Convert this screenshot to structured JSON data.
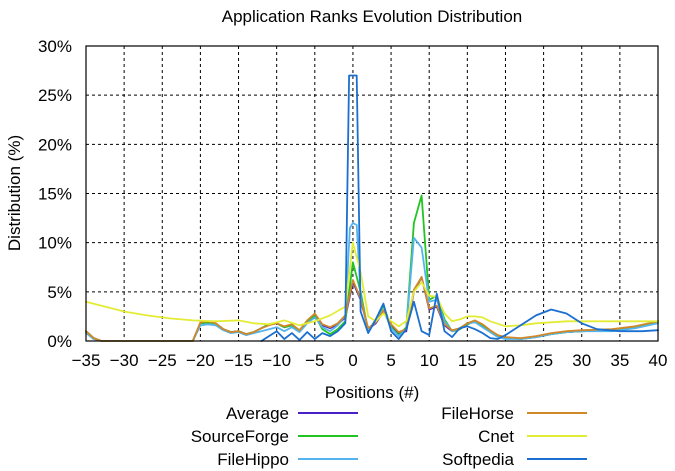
{
  "chart_data": {
    "type": "line",
    "title": "Application Ranks Evolution Distribution",
    "xlabel": "Positions (#)",
    "ylabel": "Distribution (%)",
    "xlim": [
      -35,
      40
    ],
    "ylim": [
      0,
      30
    ],
    "xticks": [
      -35,
      -30,
      -25,
      -20,
      -15,
      -10,
      -5,
      0,
      5,
      10,
      15,
      20,
      25,
      30,
      35,
      40
    ],
    "yticks": [
      0,
      5,
      10,
      15,
      20,
      25,
      30
    ],
    "ytick_labels": [
      "0%",
      "5%",
      "10%",
      "15%",
      "20%",
      "25%",
      "30%"
    ],
    "grid": true,
    "legend_position": "bottom",
    "series": [
      {
        "name": "Average",
        "color": "#4b1fc8",
        "points": [
          [
            -35,
            1.0
          ],
          [
            -34,
            0.3
          ],
          [
            -33,
            0
          ],
          [
            -21,
            0
          ],
          [
            -20,
            1.8
          ],
          [
            -19,
            1.9
          ],
          [
            -18,
            1.8
          ],
          [
            -17,
            1.2
          ],
          [
            -16,
            0.9
          ],
          [
            -15,
            1.0
          ],
          [
            -14,
            0.7
          ],
          [
            -13,
            0.9
          ],
          [
            -12,
            1.3
          ],
          [
            -11,
            1.7
          ],
          [
            -10,
            1.8
          ],
          [
            -9,
            1.4
          ],
          [
            -8,
            1.6
          ],
          [
            -7,
            1.0
          ],
          [
            -6,
            2.0
          ],
          [
            -5,
            2.6
          ],
          [
            -4,
            1.6
          ],
          [
            -3,
            1.3
          ],
          [
            -2,
            1.7
          ],
          [
            -1,
            2.4
          ],
          [
            0,
            6.0
          ],
          [
            1,
            4.2
          ],
          [
            2,
            1.2
          ],
          [
            3,
            1.8
          ],
          [
            4,
            3.0
          ],
          [
            5,
            1.6
          ],
          [
            6,
            0.8
          ],
          [
            7,
            1.0
          ],
          [
            8,
            5.0
          ],
          [
            9,
            6.5
          ],
          [
            10,
            3.2
          ],
          [
            11,
            3.5
          ],
          [
            12,
            1.6
          ],
          [
            13,
            1.0
          ],
          [
            14,
            1.2
          ],
          [
            15,
            1.7
          ],
          [
            16,
            2.0
          ],
          [
            17,
            1.6
          ],
          [
            18,
            1.0
          ],
          [
            19,
            0.5
          ],
          [
            20,
            0.3
          ],
          [
            22,
            0.2
          ],
          [
            24,
            0.4
          ],
          [
            26,
            0.7
          ],
          [
            28,
            0.9
          ],
          [
            30,
            1.0
          ],
          [
            34,
            1.1
          ],
          [
            37,
            1.4
          ],
          [
            40,
            2.0
          ]
        ]
      },
      {
        "name": "SourceForge",
        "color": "#22c422",
        "points": [
          [
            -35,
            1.0
          ],
          [
            -34,
            0.3
          ],
          [
            -33,
            0
          ],
          [
            -21,
            0
          ],
          [
            -20,
            1.8
          ],
          [
            -19,
            1.9
          ],
          [
            -18,
            1.8
          ],
          [
            -17,
            1.2
          ],
          [
            -16,
            0.9
          ],
          [
            -15,
            1.0
          ],
          [
            -14,
            0.7
          ],
          [
            -13,
            0.9
          ],
          [
            -12,
            1.3
          ],
          [
            -11,
            1.7
          ],
          [
            -10,
            1.8
          ],
          [
            -9,
            1.4
          ],
          [
            -8,
            1.6
          ],
          [
            -7,
            1.0
          ],
          [
            -6,
            2.0
          ],
          [
            -5,
            2.6
          ],
          [
            -4,
            1.2
          ],
          [
            -3,
            0.7
          ],
          [
            -2,
            1.2
          ],
          [
            -1,
            2.0
          ],
          [
            0,
            8.0
          ],
          [
            1,
            5.0
          ],
          [
            2,
            1.0
          ],
          [
            3,
            2.2
          ],
          [
            4,
            3.6
          ],
          [
            5,
            1.4
          ],
          [
            6,
            0.6
          ],
          [
            7,
            1.4
          ],
          [
            8,
            12.0
          ],
          [
            9,
            14.8
          ],
          [
            10,
            4.2
          ],
          [
            11,
            4.6
          ],
          [
            12,
            2.2
          ],
          [
            13,
            1.0
          ],
          [
            14,
            1.2
          ],
          [
            15,
            1.7
          ],
          [
            16,
            2.0
          ],
          [
            17,
            1.6
          ],
          [
            18,
            1.0
          ],
          [
            19,
            0.5
          ],
          [
            20,
            0.3
          ],
          [
            22,
            0.2
          ],
          [
            24,
            0.4
          ],
          [
            26,
            0.7
          ],
          [
            28,
            0.9
          ],
          [
            30,
            1.0
          ],
          [
            34,
            1.1
          ],
          [
            37,
            1.4
          ],
          [
            40,
            2.0
          ]
        ]
      },
      {
        "name": "FileHippo",
        "color": "#55b4ee",
        "points": [
          [
            -35,
            0.8
          ],
          [
            -34,
            0.2
          ],
          [
            -33,
            0
          ],
          [
            -21,
            0
          ],
          [
            -20,
            1.6
          ],
          [
            -19,
            1.7
          ],
          [
            -18,
            1.6
          ],
          [
            -17,
            1.1
          ],
          [
            -16,
            0.8
          ],
          [
            -15,
            0.9
          ],
          [
            -14,
            0.6
          ],
          [
            -13,
            0.8
          ],
          [
            -12,
            1.0
          ],
          [
            -11,
            1.2
          ],
          [
            -10,
            1.4
          ],
          [
            -9,
            1.0
          ],
          [
            -8,
            1.4
          ],
          [
            -7,
            0.9
          ],
          [
            -6,
            1.8
          ],
          [
            -5,
            2.4
          ],
          [
            -4,
            1.4
          ],
          [
            -3,
            1.0
          ],
          [
            -2,
            1.6
          ],
          [
            -1,
            2.6
          ],
          [
            -0.4,
            11.5
          ],
          [
            0,
            12.0
          ],
          [
            0.5,
            11.8
          ],
          [
            1,
            4.5
          ],
          [
            2,
            1.0
          ],
          [
            3,
            2.0
          ],
          [
            4,
            3.2
          ],
          [
            5,
            1.3
          ],
          [
            6,
            0.5
          ],
          [
            7,
            1.2
          ],
          [
            8,
            10.5
          ],
          [
            9,
            9.5
          ],
          [
            10,
            4.0
          ],
          [
            11,
            4.2
          ],
          [
            12,
            2.0
          ],
          [
            13,
            1.0
          ],
          [
            14,
            1.3
          ],
          [
            15,
            1.8
          ],
          [
            16,
            1.9
          ],
          [
            17,
            1.4
          ],
          [
            18,
            0.9
          ],
          [
            19,
            0.4
          ],
          [
            20,
            0.2
          ],
          [
            22,
            0.2
          ],
          [
            24,
            0.4
          ],
          [
            26,
            0.7
          ],
          [
            28,
            0.9
          ],
          [
            30,
            1.0
          ],
          [
            34,
            1.0
          ],
          [
            37,
            1.3
          ],
          [
            40,
            1.8
          ]
        ]
      },
      {
        "name": "FileHorse",
        "color": "#d08828",
        "points": [
          [
            -35,
            1.0
          ],
          [
            -34,
            0.3
          ],
          [
            -33,
            0
          ],
          [
            -21,
            0
          ],
          [
            -20,
            1.9
          ],
          [
            -19,
            2.0
          ],
          [
            -18,
            1.8
          ],
          [
            -17,
            1.2
          ],
          [
            -16,
            0.9
          ],
          [
            -15,
            1.0
          ],
          [
            -14,
            0.7
          ],
          [
            -13,
            0.9
          ],
          [
            -12,
            1.3
          ],
          [
            -11,
            1.6
          ],
          [
            -10,
            1.8
          ],
          [
            -9,
            1.5
          ],
          [
            -8,
            1.7
          ],
          [
            -7,
            1.1
          ],
          [
            -6,
            2.1
          ],
          [
            -5,
            2.8
          ],
          [
            -4,
            1.7
          ],
          [
            -3,
            1.4
          ],
          [
            -2,
            1.8
          ],
          [
            -1,
            2.6
          ],
          [
            0,
            6.2
          ],
          [
            1,
            4.3
          ],
          [
            2,
            1.3
          ],
          [
            3,
            1.9
          ],
          [
            4,
            3.1
          ],
          [
            5,
            1.7
          ],
          [
            6,
            0.9
          ],
          [
            7,
            1.2
          ],
          [
            8,
            5.2
          ],
          [
            9,
            6.5
          ],
          [
            10,
            3.3
          ],
          [
            11,
            3.6
          ],
          [
            12,
            1.7
          ],
          [
            13,
            1.1
          ],
          [
            14,
            1.3
          ],
          [
            15,
            1.8
          ],
          [
            16,
            2.1
          ],
          [
            17,
            1.7
          ],
          [
            18,
            1.1
          ],
          [
            19,
            0.6
          ],
          [
            20,
            0.4
          ],
          [
            22,
            0.3
          ],
          [
            24,
            0.5
          ],
          [
            26,
            0.8
          ],
          [
            28,
            1.0
          ],
          [
            30,
            1.1
          ],
          [
            34,
            1.2
          ],
          [
            37,
            1.5
          ],
          [
            40,
            2.0
          ]
        ]
      },
      {
        "name": "Cnet",
        "color": "#e3ec35",
        "points": [
          [
            -35,
            4.0
          ],
          [
            -32,
            3.4
          ],
          [
            -30,
            3.0
          ],
          [
            -27,
            2.6
          ],
          [
            -24,
            2.3
          ],
          [
            -21,
            2.1
          ],
          [
            -18,
            2.0
          ],
          [
            -15,
            2.1
          ],
          [
            -13,
            1.8
          ],
          [
            -11,
            1.7
          ],
          [
            -9,
            2.1
          ],
          [
            -7,
            1.6
          ],
          [
            -5,
            2.0
          ],
          [
            -3,
            2.6
          ],
          [
            -1,
            3.5
          ],
          [
            0,
            10.0
          ],
          [
            1,
            7.0
          ],
          [
            2,
            2.5
          ],
          [
            3,
            2.0
          ],
          [
            4,
            2.8
          ],
          [
            5,
            2.0
          ],
          [
            6,
            1.5
          ],
          [
            7,
            2.0
          ],
          [
            8,
            5.0
          ],
          [
            9,
            6.0
          ],
          [
            10,
            4.6
          ],
          [
            11,
            4.5
          ],
          [
            12,
            2.8
          ],
          [
            13,
            2.0
          ],
          [
            14,
            2.2
          ],
          [
            15,
            2.5
          ],
          [
            16,
            2.5
          ],
          [
            17,
            2.4
          ],
          [
            18,
            2.0
          ],
          [
            20,
            1.5
          ],
          [
            22,
            1.6
          ],
          [
            24,
            1.8
          ],
          [
            26,
            1.9
          ],
          [
            28,
            2.0
          ],
          [
            30,
            2.0
          ],
          [
            35,
            2.0
          ],
          [
            40,
            2.0
          ]
        ]
      },
      {
        "name": "Softpedia",
        "color": "#1a6fd0",
        "points": [
          [
            -12,
            0
          ],
          [
            -11,
            0.5
          ],
          [
            -10,
            1.0
          ],
          [
            -9,
            0.2
          ],
          [
            -8,
            0.8
          ],
          [
            -7,
            0.1
          ],
          [
            -6,
            0.9
          ],
          [
            -5,
            0.2
          ],
          [
            -4,
            0.8
          ],
          [
            -3,
            0.5
          ],
          [
            -2,
            1.0
          ],
          [
            -1,
            1.8
          ],
          [
            -0.5,
            27.0
          ],
          [
            0,
            27.0
          ],
          [
            0.5,
            27.0
          ],
          [
            1,
            3.0
          ],
          [
            2,
            0.8
          ],
          [
            3,
            2.2
          ],
          [
            4,
            3.8
          ],
          [
            5,
            1.0
          ],
          [
            6,
            0.2
          ],
          [
            7,
            1.2
          ],
          [
            8,
            4.0
          ],
          [
            9,
            1.0
          ],
          [
            10,
            0.6
          ],
          [
            11,
            4.8
          ],
          [
            12,
            1.0
          ],
          [
            13,
            0.4
          ],
          [
            14,
            1.3
          ],
          [
            15,
            1.5
          ],
          [
            16,
            1.2
          ],
          [
            17,
            0.8
          ],
          [
            18,
            0.3
          ],
          [
            19,
            0.2
          ],
          [
            20,
            0.6
          ],
          [
            22,
            1.6
          ],
          [
            24,
            2.6
          ],
          [
            26,
            3.2
          ],
          [
            28,
            2.8
          ],
          [
            30,
            1.8
          ],
          [
            32,
            1.2
          ],
          [
            35,
            1.0
          ],
          [
            38,
            1.0
          ],
          [
            40,
            1.1
          ]
        ]
      }
    ]
  }
}
